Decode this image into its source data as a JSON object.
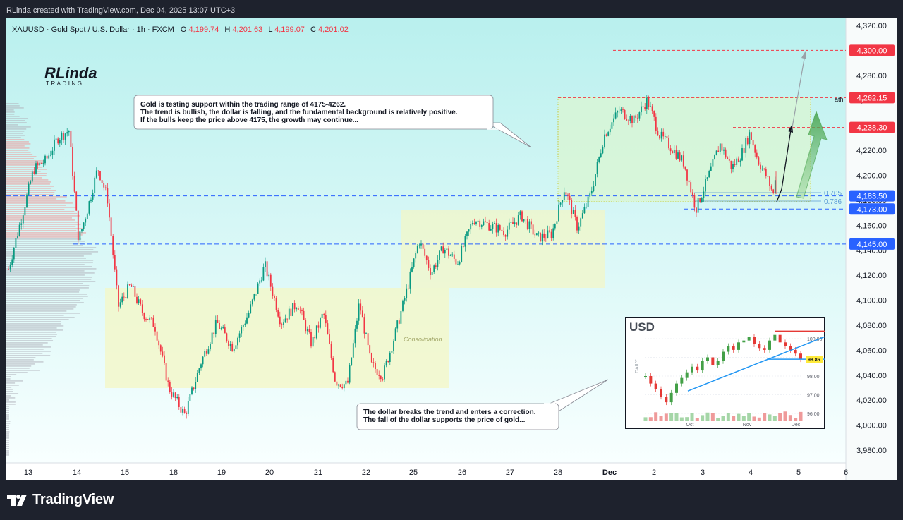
{
  "attribution": "RLinda created with TradingView.com, Dec 04, 2025 13:07 UTC+3",
  "footer_logo": "TradingView",
  "colors": {
    "up": "#089981",
    "down": "#f23645",
    "accent": "#2962ff",
    "bg_top": "#b9f0ee",
    "bg_bottom": "#f8ffff"
  },
  "header": {
    "symbol": "XAUUSD · Gold Spot / U.S. Dollar · 1h · FXCM",
    "o_label": "O",
    "o": "4,199.74",
    "h_label": "H",
    "h": "4,201.63",
    "l_label": "L",
    "l": "4,199.07",
    "c_label": "C",
    "c": "4,201.02"
  },
  "brand_logo": {
    "line1": "RLinda",
    "line2": "TRADING"
  },
  "annotations": {
    "top_callout": [
      "Gold is testing support within the trading range of 4175-4262.",
      "The trend is bullish, the dollar is falling, and the fundamental background is relatively positive.",
      "If the bulls keep the price above 4175, the growth may continue..."
    ],
    "bottom_callout": [
      "The dollar breaks the trend and enters a correction.",
      "The fall of the dollar supports the price of gold..."
    ],
    "consolidation_label": "Consolidation",
    "ath_label": "ath",
    "fib_705": "0.705",
    "fib_786": "0.786"
  },
  "chart_data": {
    "type": "line",
    "ylim": [
      3970,
      4330
    ],
    "y_ticks": [
      "4,320.00",
      "4,300.00",
      "4,280.00",
      "4,260.00",
      "4,240.00",
      "4,220.00",
      "4,200.00",
      "4,180.00",
      "4,160.00",
      "4,140.00",
      "4,120.00",
      "4,100.00",
      "4,080.00",
      "4,060.00",
      "4,040.00",
      "4,020.00",
      "4,000.00",
      "3,980.00"
    ],
    "x_ticks": [
      "13",
      "14",
      "15",
      "18",
      "19",
      "20",
      "21",
      "22",
      "25",
      "26",
      "27",
      "28",
      "Dec",
      "2",
      "3",
      "4",
      "5",
      "6"
    ],
    "price_labels": [
      {
        "value": 4300.0,
        "text": "4,300.00"
      },
      {
        "value": 4262.15,
        "text": "4,262.15"
      },
      {
        "value": 4238.3,
        "text": "4,238.30"
      },
      {
        "value": 4183.5,
        "text": "4,183.50"
      },
      {
        "value": 4173.0,
        "text": "4,173.00"
      },
      {
        "value": 4145.0,
        "text": "4,145.00"
      }
    ],
    "price_path": [
      [
        "13",
        4125
      ],
      [
        "13",
        4205
      ],
      [
        "13",
        4212
      ],
      [
        "13",
        4230
      ],
      [
        "14",
        4236
      ],
      [
        "14",
        4148
      ],
      [
        "14",
        4175
      ],
      [
        "14",
        4206
      ],
      [
        "14",
        4182
      ],
      [
        "15",
        4095
      ],
      [
        "15",
        4112
      ],
      [
        "15",
        4090
      ],
      [
        "15",
        4080
      ],
      [
        "18",
        4030
      ],
      [
        "18",
        4008
      ],
      [
        "18",
        4050
      ],
      [
        "19",
        4082
      ],
      [
        "19",
        4062
      ],
      [
        "19",
        4090
      ],
      [
        "20",
        4128
      ],
      [
        "20",
        4082
      ],
      [
        "20",
        4098
      ],
      [
        "21",
        4065
      ],
      [
        "21",
        4090
      ],
      [
        "21",
        4035
      ],
      [
        "21",
        4032
      ],
      [
        "22",
        4098
      ],
      [
        "22",
        4048
      ],
      [
        "22",
        4040
      ],
      [
        "22",
        4072
      ],
      [
        "25",
        4108
      ],
      [
        "25",
        4148
      ],
      [
        "25",
        4122
      ],
      [
        "25",
        4142
      ],
      [
        "26",
        4130
      ],
      [
        "26",
        4165
      ],
      [
        "26",
        4160
      ],
      [
        "27",
        4155
      ],
      [
        "27",
        4168
      ],
      [
        "27",
        4150
      ],
      [
        "28",
        4153
      ],
      [
        "28",
        4190
      ],
      [
        "28",
        4158
      ],
      [
        "28",
        4184
      ],
      [
        "Dec",
        4232
      ],
      [
        "Dec",
        4252
      ],
      [
        "Dec",
        4244
      ],
      [
        "2",
        4260
      ],
      [
        "2",
        4232
      ],
      [
        "2",
        4222
      ],
      [
        "2",
        4210
      ],
      [
        "3",
        4173
      ],
      [
        "3",
        4198
      ],
      [
        "3",
        4225
      ],
      [
        "3",
        4206
      ],
      [
        "4",
        4218
      ],
      [
        "4",
        4234
      ],
      [
        "4",
        4212
      ],
      [
        "4",
        4200
      ],
      [
        "4",
        4184
      ],
      [
        "4",
        4201
      ]
    ]
  },
  "usd_inset": {
    "title": "USD",
    "side_label": "DAILY",
    "y_ticks": [
      "100.00",
      "99.00",
      "98.00",
      "97.00",
      "96.00"
    ],
    "price_tag": "98.86",
    "x_ticks": [
      "Oct",
      "Nov",
      "Dec"
    ],
    "closes": [
      98.0,
      97.6,
      97.3,
      96.9,
      96.6,
      97.1,
      97.6,
      97.9,
      98.2,
      98.5,
      98.3,
      98.8,
      99.0,
      98.6,
      98.8,
      99.3,
      99.6,
      99.4,
      99.8,
      99.9,
      100.1,
      99.7,
      99.5,
      99.4,
      99.9,
      100.2,
      99.8,
      99.6,
      99.4,
      99.2,
      98.9
    ]
  }
}
